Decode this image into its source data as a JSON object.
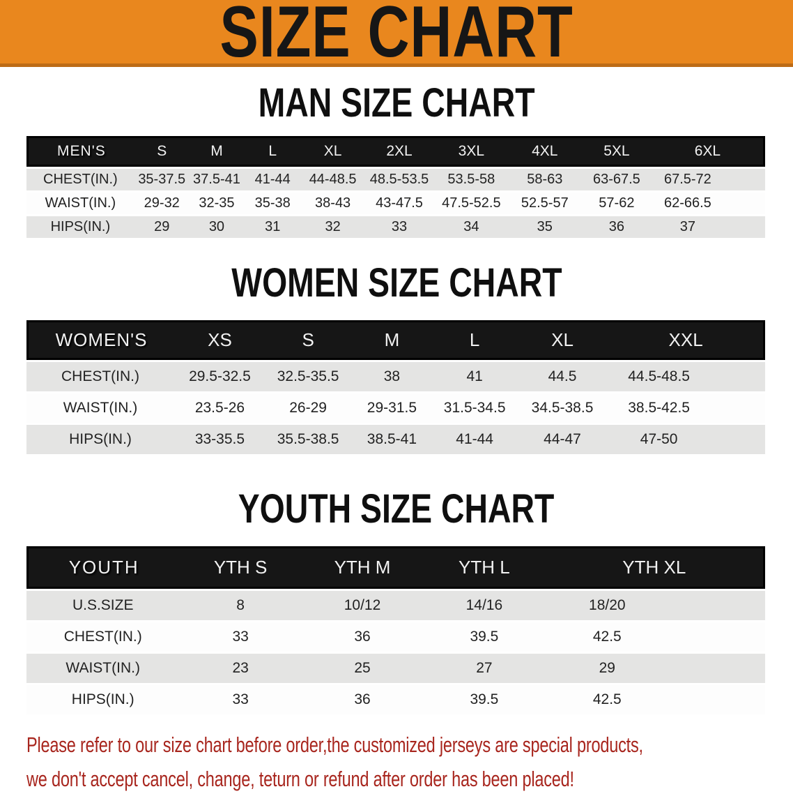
{
  "banner": {
    "title": "SIZE CHART"
  },
  "sections": [
    {
      "title": "MAN SIZE CHART",
      "header_label": "MEN'S",
      "columns": [
        "S",
        "M",
        "L",
        "XL",
        "2XL",
        "3XL",
        "4XL",
        "5XL",
        "6XL"
      ],
      "rows": [
        {
          "label": "CHEST(IN.)",
          "values": [
            "35-37.5",
            "37.5-41",
            "41-44",
            "44-48.5",
            "48.5-53.5",
            "53.5-58",
            "58-63",
            "63-67.5",
            "67.5-72"
          ]
        },
        {
          "label": "WAIST(IN.)",
          "values": [
            "29-32",
            "32-35",
            "35-38",
            "38-43",
            "43-47.5",
            "47.5-52.5",
            "52.5-57",
            "57-62",
            "62-66.5"
          ]
        },
        {
          "label": "HIPS(IN.)",
          "values": [
            "29",
            "30",
            "31",
            "32",
            "33",
            "34",
            "35",
            "36",
            "37"
          ]
        }
      ]
    },
    {
      "title": "WOMEN SIZE CHART",
      "header_label": "WOMEN'S",
      "columns": [
        "XS",
        "S",
        "M",
        "L",
        "XL",
        "XXL"
      ],
      "rows": [
        {
          "label": "CHEST(IN.)",
          "values": [
            "29.5-32.5",
            "32.5-35.5",
            "38",
            "41",
            "44.5",
            "44.5-48.5"
          ]
        },
        {
          "label": "WAIST(IN.)",
          "values": [
            "23.5-26",
            "26-29",
            "29-31.5",
            "31.5-34.5",
            "34.5-38.5",
            "38.5-42.5"
          ]
        },
        {
          "label": "HIPS(IN.)",
          "values": [
            "33-35.5",
            "35.5-38.5",
            "38.5-41",
            "41-44",
            "44-47",
            "47-50"
          ]
        }
      ]
    },
    {
      "title": "YOUTH SIZE CHART",
      "header_label": "YOUTH",
      "columns": [
        "YTH S",
        "YTH M",
        "YTH L",
        "YTH XL"
      ],
      "rows": [
        {
          "label": "U.S.SIZE",
          "values": [
            "8",
            "10/12",
            "14/16",
            "18/20"
          ]
        },
        {
          "label": "CHEST(IN.)",
          "values": [
            "33",
            "36",
            "39.5",
            "42.5"
          ]
        },
        {
          "label": "WAIST(IN.)",
          "values": [
            "23",
            "25",
            "27",
            "29"
          ]
        },
        {
          "label": "HIPS(IN.)",
          "values": [
            "33",
            "36",
            "39.5",
            "42.5"
          ]
        }
      ]
    }
  ],
  "notice": {
    "line1": "Please refer to our size chart before order,the customized jerseys are special products,",
    "line2": "we don't accept cancel, change, teturn or refund after order has been placed!"
  },
  "colors": {
    "banner_bg": "#E9871E",
    "banner_border": "#BD6B16",
    "header_bg": "#161616",
    "row_gray": "#E4E4E3",
    "row_white": "#FDFDFD",
    "notice_red": "#A8261E",
    "text_dark": "#222222"
  }
}
